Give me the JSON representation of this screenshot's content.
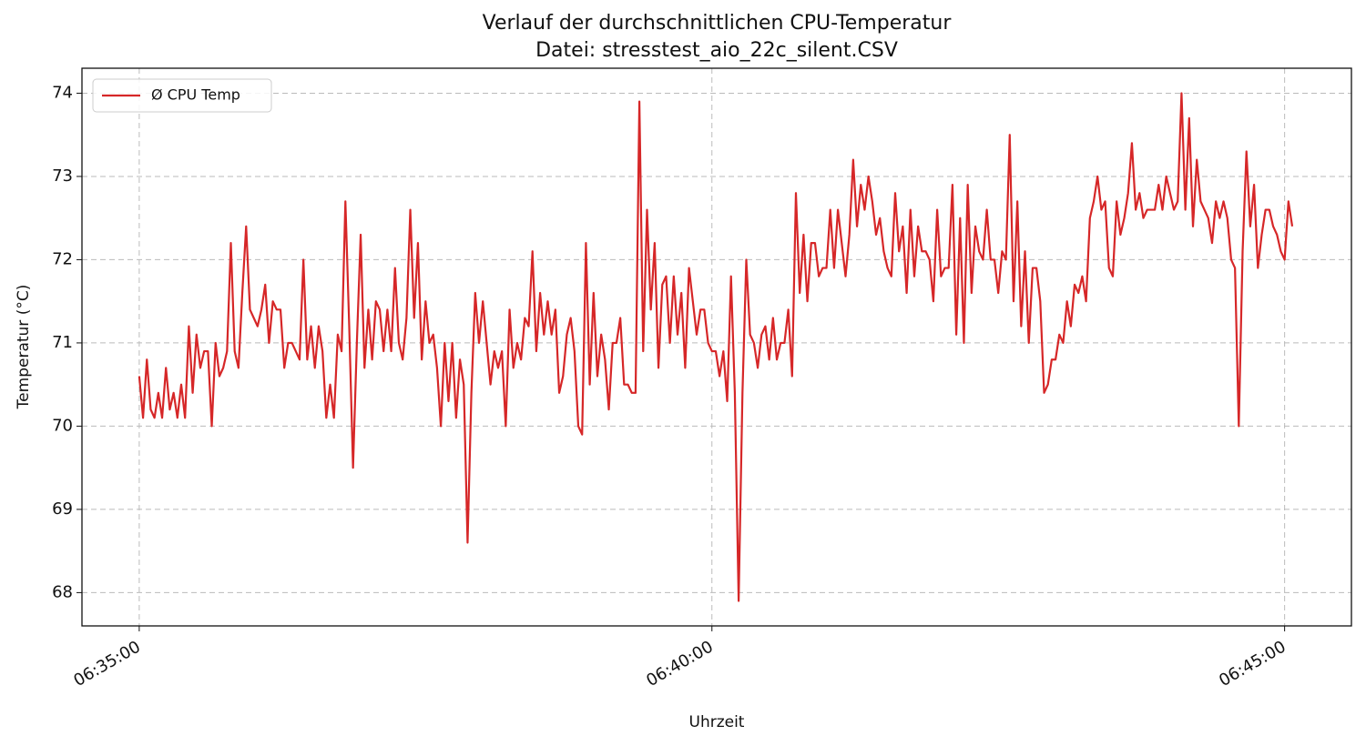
{
  "chart_data": {
    "type": "line",
    "title": "Verlauf der durchschnittlichen CPU-Temperatur",
    "subtitle": "Datei: stresstest_aio_22c_silent.CSV",
    "x_label": "Uhrzeit",
    "y_label": "Temperatur (°C)",
    "xlim": [
      "06:34:30",
      "06:45:35"
    ],
    "xticks": [
      "06:35:00",
      "06:40:00",
      "06:45:00"
    ],
    "ylim": [
      67.6,
      74.3
    ],
    "yticks": [
      68,
      69,
      70,
      71,
      72,
      73,
      74
    ],
    "grid": true,
    "legend": "upper left",
    "x": [
      "06:35:00",
      "06:35:02",
      "06:35:04",
      "06:35:06",
      "06:35:08",
      "06:35:10",
      "06:35:12",
      "06:35:14",
      "06:35:16",
      "06:35:18",
      "06:35:20",
      "06:35:22",
      "06:35:24",
      "06:35:26",
      "06:35:28",
      "06:35:30",
      "06:35:32",
      "06:35:34",
      "06:35:36",
      "06:35:38",
      "06:35:40",
      "06:35:42",
      "06:35:44",
      "06:35:46",
      "06:35:48",
      "06:35:50",
      "06:35:52",
      "06:35:54",
      "06:35:56",
      "06:35:58",
      "06:36:00",
      "06:36:02",
      "06:36:04",
      "06:36:06",
      "06:36:08",
      "06:36:10",
      "06:36:12",
      "06:36:14",
      "06:36:16",
      "06:36:18",
      "06:36:20",
      "06:36:22",
      "06:36:24",
      "06:36:26",
      "06:36:28",
      "06:36:30",
      "06:36:32",
      "06:36:34",
      "06:36:36",
      "06:36:38",
      "06:36:40",
      "06:36:42",
      "06:36:44",
      "06:36:46",
      "06:36:48",
      "06:36:50",
      "06:36:52",
      "06:36:54",
      "06:36:56",
      "06:36:58",
      "06:37:00",
      "06:37:02",
      "06:37:04",
      "06:37:06",
      "06:37:08",
      "06:37:10",
      "06:37:12",
      "06:37:14",
      "06:37:16",
      "06:37:18",
      "06:37:20",
      "06:37:22",
      "06:37:24",
      "06:37:26",
      "06:37:28",
      "06:37:30",
      "06:37:32",
      "06:37:34",
      "06:37:36",
      "06:37:38",
      "06:37:40",
      "06:37:42",
      "06:37:44",
      "06:37:46",
      "06:37:48",
      "06:37:50",
      "06:37:52",
      "06:37:54",
      "06:37:56",
      "06:37:58",
      "06:38:00",
      "06:38:02",
      "06:38:04",
      "06:38:06",
      "06:38:08",
      "06:38:10",
      "06:38:12",
      "06:38:14",
      "06:38:16",
      "06:38:18",
      "06:38:20",
      "06:38:22",
      "06:38:24",
      "06:38:26",
      "06:38:28",
      "06:38:30",
      "06:38:32",
      "06:38:34",
      "06:38:36",
      "06:38:38",
      "06:38:40",
      "06:38:42",
      "06:38:44",
      "06:38:46",
      "06:38:48",
      "06:38:50",
      "06:38:52",
      "06:38:54",
      "06:38:56",
      "06:38:58",
      "06:39:00",
      "06:39:02",
      "06:39:04",
      "06:39:06",
      "06:39:08",
      "06:39:10",
      "06:39:12",
      "06:39:14",
      "06:39:16",
      "06:39:18",
      "06:39:20",
      "06:39:22",
      "06:39:24",
      "06:39:26",
      "06:39:28",
      "06:39:30",
      "06:39:32",
      "06:39:34",
      "06:39:36",
      "06:39:38",
      "06:39:40",
      "06:39:42",
      "06:39:44",
      "06:39:46",
      "06:39:48",
      "06:39:50",
      "06:39:52",
      "06:39:54",
      "06:39:56",
      "06:39:58",
      "06:40:00",
      "06:40:02",
      "06:40:04",
      "06:40:06",
      "06:40:08",
      "06:40:10",
      "06:40:12",
      "06:40:14",
      "06:40:16",
      "06:40:18",
      "06:40:20",
      "06:40:22",
      "06:40:24",
      "06:40:26",
      "06:40:28",
      "06:40:30",
      "06:40:32",
      "06:40:34",
      "06:40:36",
      "06:40:38",
      "06:40:40",
      "06:40:42",
      "06:40:44",
      "06:40:46",
      "06:40:48",
      "06:40:50",
      "06:40:52",
      "06:40:54",
      "06:40:56",
      "06:40:58",
      "06:41:00",
      "06:41:02",
      "06:41:04",
      "06:41:06",
      "06:41:08",
      "06:41:10",
      "06:41:12",
      "06:41:14",
      "06:41:16",
      "06:41:18",
      "06:41:20",
      "06:41:22",
      "06:41:24",
      "06:41:26",
      "06:41:28",
      "06:41:30",
      "06:41:32",
      "06:41:34",
      "06:41:36",
      "06:41:38",
      "06:41:40",
      "06:41:42",
      "06:41:44",
      "06:41:46",
      "06:41:48",
      "06:41:50",
      "06:41:52",
      "06:41:54",
      "06:41:56",
      "06:41:58",
      "06:42:00",
      "06:42:02",
      "06:42:04",
      "06:42:06",
      "06:42:08",
      "06:42:10",
      "06:42:12",
      "06:42:14",
      "06:42:16",
      "06:42:18",
      "06:42:20",
      "06:42:22",
      "06:42:24",
      "06:42:26",
      "06:42:28",
      "06:42:30",
      "06:42:32",
      "06:42:34",
      "06:42:36",
      "06:42:38",
      "06:42:40",
      "06:42:42",
      "06:42:44",
      "06:42:46",
      "06:42:48",
      "06:42:50",
      "06:42:52",
      "06:42:54",
      "06:42:56",
      "06:42:58",
      "06:43:00",
      "06:43:02",
      "06:43:04",
      "06:43:06",
      "06:43:08",
      "06:43:10",
      "06:43:12",
      "06:43:14",
      "06:43:16",
      "06:43:18",
      "06:43:20",
      "06:43:22",
      "06:43:24",
      "06:43:26",
      "06:43:28",
      "06:43:30",
      "06:43:32",
      "06:43:34",
      "06:43:36",
      "06:43:38",
      "06:43:40",
      "06:43:42",
      "06:43:44",
      "06:43:46",
      "06:43:48",
      "06:43:50",
      "06:43:52",
      "06:43:54",
      "06:43:56",
      "06:43:58",
      "06:44:00",
      "06:44:02",
      "06:44:04",
      "06:44:06",
      "06:44:08",
      "06:44:10",
      "06:44:12",
      "06:44:14",
      "06:44:16",
      "06:44:18",
      "06:44:20",
      "06:44:22",
      "06:44:24",
      "06:44:26",
      "06:44:28",
      "06:44:30",
      "06:44:32",
      "06:44:34",
      "06:44:36",
      "06:44:38",
      "06:44:40",
      "06:44:42",
      "06:44:44",
      "06:44:46",
      "06:44:48",
      "06:44:50",
      "06:44:52",
      "06:44:54",
      "06:44:56",
      "06:44:58",
      "06:45:00",
      "06:45:02",
      "06:45:04"
    ],
    "series": [
      {
        "name": "Ø CPU Temp",
        "color": "#d62728",
        "values": [
          70.6,
          70.1,
          70.8,
          70.2,
          70.1,
          70.4,
          70.1,
          70.7,
          70.2,
          70.4,
          70.1,
          70.5,
          70.1,
          71.2,
          70.4,
          71.1,
          70.7,
          70.9,
          70.9,
          70.0,
          71.0,
          70.6,
          70.7,
          70.9,
          72.2,
          70.9,
          70.7,
          71.6,
          72.4,
          71.4,
          71.3,
          71.2,
          71.4,
          71.7,
          71.0,
          71.5,
          71.4,
          71.4,
          70.7,
          71.0,
          71.0,
          70.9,
          70.8,
          72.0,
          70.8,
          71.2,
          70.7,
          71.2,
          70.9,
          70.1,
          70.5,
          70.1,
          71.1,
          70.9,
          72.7,
          71.2,
          69.5,
          71.0,
          72.3,
          70.7,
          71.4,
          70.8,
          71.5,
          71.4,
          70.9,
          71.4,
          70.9,
          71.9,
          71.0,
          70.8,
          71.3,
          72.6,
          71.3,
          72.2,
          70.8,
          71.5,
          71.0,
          71.1,
          70.7,
          70.0,
          71.0,
          70.3,
          71.0,
          70.1,
          70.8,
          70.5,
          68.6,
          70.4,
          71.6,
          71.0,
          71.5,
          71.0,
          70.5,
          70.9,
          70.7,
          70.9,
          70.0,
          71.4,
          70.7,
          71.0,
          70.8,
          71.3,
          71.2,
          72.1,
          70.9,
          71.6,
          71.1,
          71.5,
          71.1,
          71.4,
          70.4,
          70.6,
          71.1,
          71.3,
          70.9,
          70.0,
          69.9,
          72.2,
          70.5,
          71.6,
          70.6,
          71.1,
          70.8,
          70.2,
          71.0,
          71.0,
          71.3,
          70.5,
          70.5,
          70.4,
          70.4,
          73.9,
          70.9,
          72.6,
          71.4,
          72.2,
          70.7,
          71.7,
          71.8,
          71.0,
          71.8,
          71.1,
          71.6,
          70.7,
          71.9,
          71.5,
          71.1,
          71.4,
          71.4,
          71.0,
          70.9,
          70.9,
          70.6,
          70.9,
          70.3,
          71.8,
          70.4,
          67.9,
          70.4,
          72.0,
          71.1,
          71.0,
          70.7,
          71.1,
          71.2,
          70.8,
          71.3,
          70.8,
          71.0,
          71.0,
          71.4,
          70.6,
          72.8,
          71.6,
          72.3,
          71.5,
          72.2,
          72.2,
          71.8,
          71.9,
          71.9,
          72.6,
          71.9,
          72.6,
          72.2,
          71.8,
          72.3,
          73.2,
          72.4,
          72.9,
          72.6,
          73.0,
          72.7,
          72.3,
          72.5,
          72.1,
          71.9,
          71.8,
          72.8,
          72.1,
          72.4,
          71.6,
          72.6,
          71.8,
          72.4,
          72.1,
          72.1,
          72.0,
          71.5,
          72.6,
          71.8,
          71.9,
          71.9,
          72.9,
          71.1,
          72.5,
          71.0,
          72.9,
          71.6,
          72.4,
          72.1,
          72.0,
          72.6,
          72.0,
          72.0,
          71.6,
          72.1,
          72.0,
          73.5,
          71.5,
          72.7,
          71.2,
          72.1,
          71.0,
          71.9,
          71.9,
          71.5,
          70.4,
          70.5,
          70.8,
          70.8,
          71.1,
          71.0,
          71.5,
          71.2,
          71.7,
          71.6,
          71.8,
          71.5,
          72.5,
          72.7,
          73.0,
          72.6,
          72.7,
          71.9,
          71.8,
          72.7,
          72.3,
          72.5,
          72.8,
          73.4,
          72.6,
          72.8,
          72.5,
          72.6,
          72.6,
          72.6,
          72.9,
          72.6,
          73.0,
          72.8,
          72.6,
          72.7,
          74.0,
          72.6,
          73.7,
          72.4,
          73.2,
          72.7,
          72.6,
          72.5,
          72.2,
          72.7,
          72.5,
          72.7,
          72.5,
          72.0,
          71.9,
          70.0,
          72.1,
          73.3,
          72.4,
          72.9,
          71.9,
          72.3,
          72.6,
          72.6,
          72.4,
          72.3,
          72.1,
          72.0,
          72.7,
          72.4
        ]
      }
    ]
  }
}
